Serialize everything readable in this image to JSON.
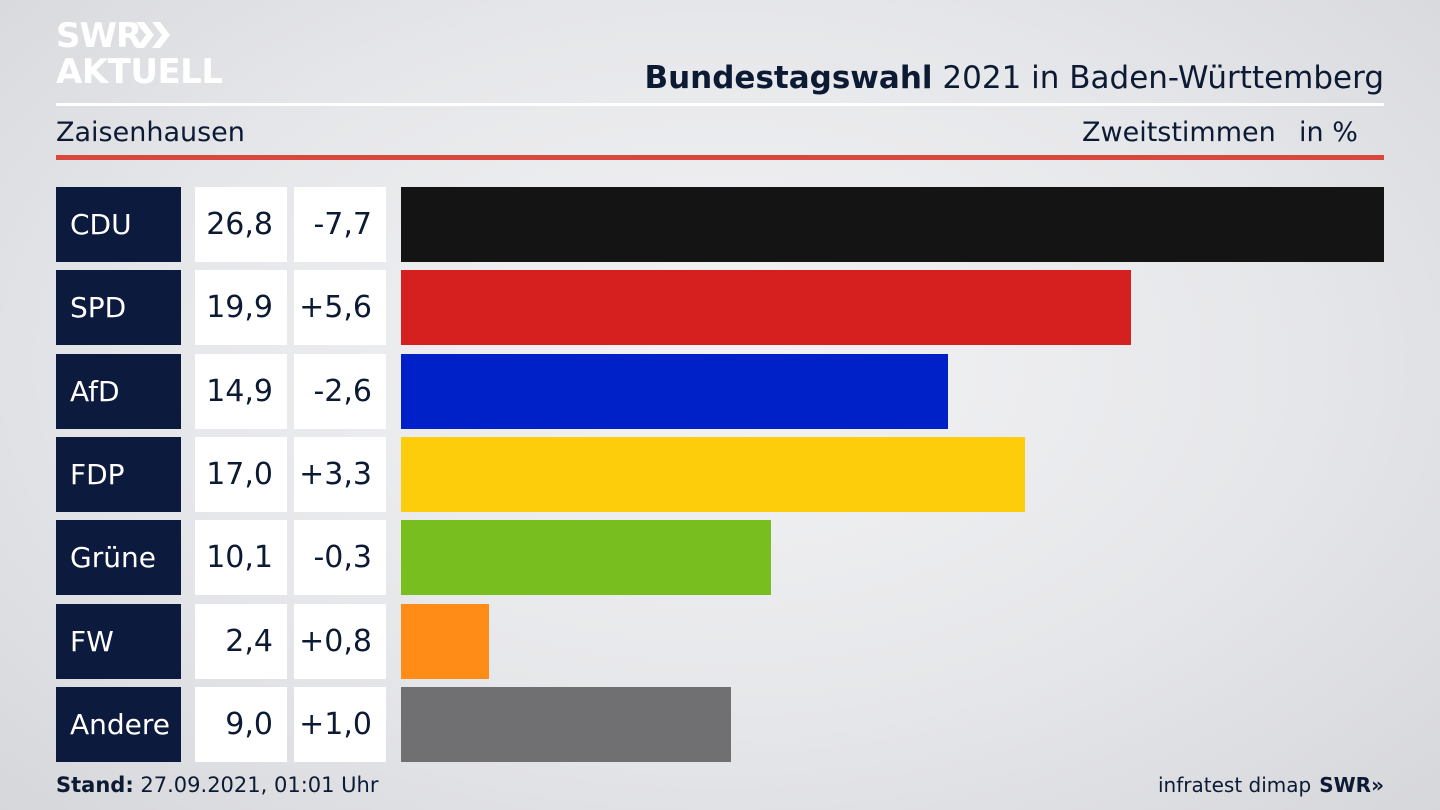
{
  "brand": {
    "logo_line1": "SWR",
    "logo_line2": "AKTUELL"
  },
  "header": {
    "title_bold": "Bundestagswahl",
    "title_rest": " 2021 in Baden-Württemberg",
    "region": "Zaisenhausen",
    "measure": "Zweitstimmen",
    "unit": "in %"
  },
  "footer": {
    "stand_label": "Stand:",
    "stand_value": " 27.09.2021, 01:01 Uhr",
    "source": "infratest dimap",
    "source_brand": "SWR»"
  },
  "colors": {
    "party_box": "#0c1a3d",
    "accent_rule": "#d9473d"
  },
  "chart_data": {
    "type": "bar",
    "orientation": "horizontal",
    "categories": [
      "CDU",
      "SPD",
      "AfD",
      "FDP",
      "Grüne",
      "FW",
      "Andere"
    ],
    "values": [
      26.8,
      19.9,
      14.9,
      17.0,
      10.1,
      2.4,
      9.0
    ],
    "value_labels": [
      "26,8",
      "19,9",
      "14,9",
      "17,0",
      "10,1",
      "2,4",
      "9,0"
    ],
    "changes": [
      -7.7,
      5.6,
      -2.6,
      3.3,
      -0.3,
      0.8,
      1.0
    ],
    "change_labels": [
      "-7,7",
      "+5,6",
      "-2,6",
      "+3,3",
      "-0,3",
      "+0,8",
      "+1,0"
    ],
    "bar_colors": [
      "#141414",
      "#d61f1f",
      "#0021c8",
      "#fdcc0a",
      "#78be1e",
      "#ff8c17",
      "#707073"
    ],
    "xlim": [
      0,
      26.8
    ],
    "grid": false,
    "legend": "none"
  }
}
